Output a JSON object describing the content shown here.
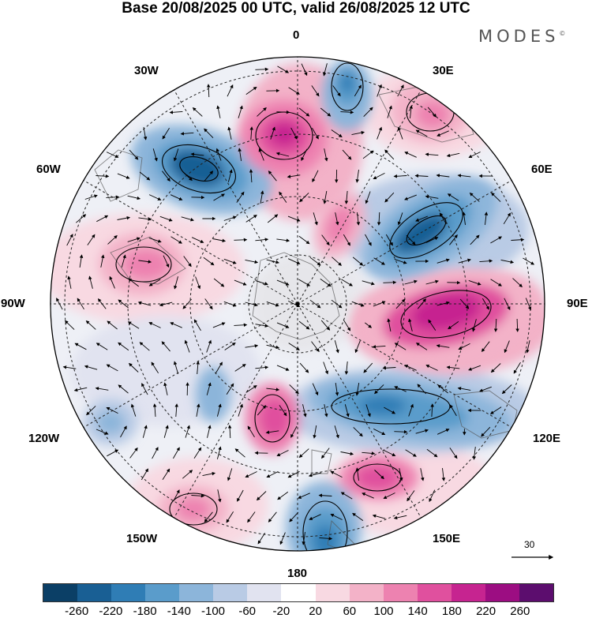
{
  "title": "Base 20/08/2025 00 UTC, valid 26/08/2025 12 UTC",
  "brand": "MODES",
  "brand_mark": "©",
  "longitude_labels": {
    "lon_0": "0",
    "lon_30e": "30E",
    "lon_60e": "60E",
    "lon_90e": "90E",
    "lon_120e": "120E",
    "lon_150e": "150E",
    "lon_180": "180",
    "lon_150w": "150W",
    "lon_120w": "120W",
    "lon_90w": "90W",
    "lon_60w": "60W",
    "lon_30w": "30W"
  },
  "vector_reference": {
    "label": "30"
  },
  "colorbar": {
    "ticks": [
      "-260",
      "-220",
      "-180",
      "-140",
      "-100",
      "-60",
      "-20",
      "20",
      "60",
      "100",
      "140",
      "180",
      "220",
      "260"
    ],
    "colors": [
      "#0b3f66",
      "#195f94",
      "#2f7db5",
      "#5a9ccb",
      "#8cb5da",
      "#b9cbe5",
      "#e1e3f0",
      "#ffffff",
      "#f8d9e2",
      "#f3b2c8",
      "#ed82b0",
      "#e0509e",
      "#c62490",
      "#9c0d82",
      "#5c0d6e"
    ]
  },
  "anomaly_centers": [
    {
      "sign": "negative",
      "color": "#195f94"
    },
    {
      "sign": "negative",
      "color": "#195f94"
    },
    {
      "sign": "negative",
      "color": "#2f7db5"
    },
    {
      "sign": "negative",
      "color": "#2f7db5"
    },
    {
      "sign": "negative",
      "color": "#2f7db5"
    },
    {
      "sign": "positive",
      "color": "#c62490"
    },
    {
      "sign": "positive",
      "color": "#c62490"
    },
    {
      "sign": "positive",
      "color": "#e0509e"
    },
    {
      "sign": "positive",
      "color": "#e0509e"
    },
    {
      "sign": "positive",
      "color": "#ed82b0"
    },
    {
      "sign": "positive",
      "color": "#ed82b0"
    },
    {
      "sign": "positive",
      "color": "#ed82b0"
    }
  ]
}
